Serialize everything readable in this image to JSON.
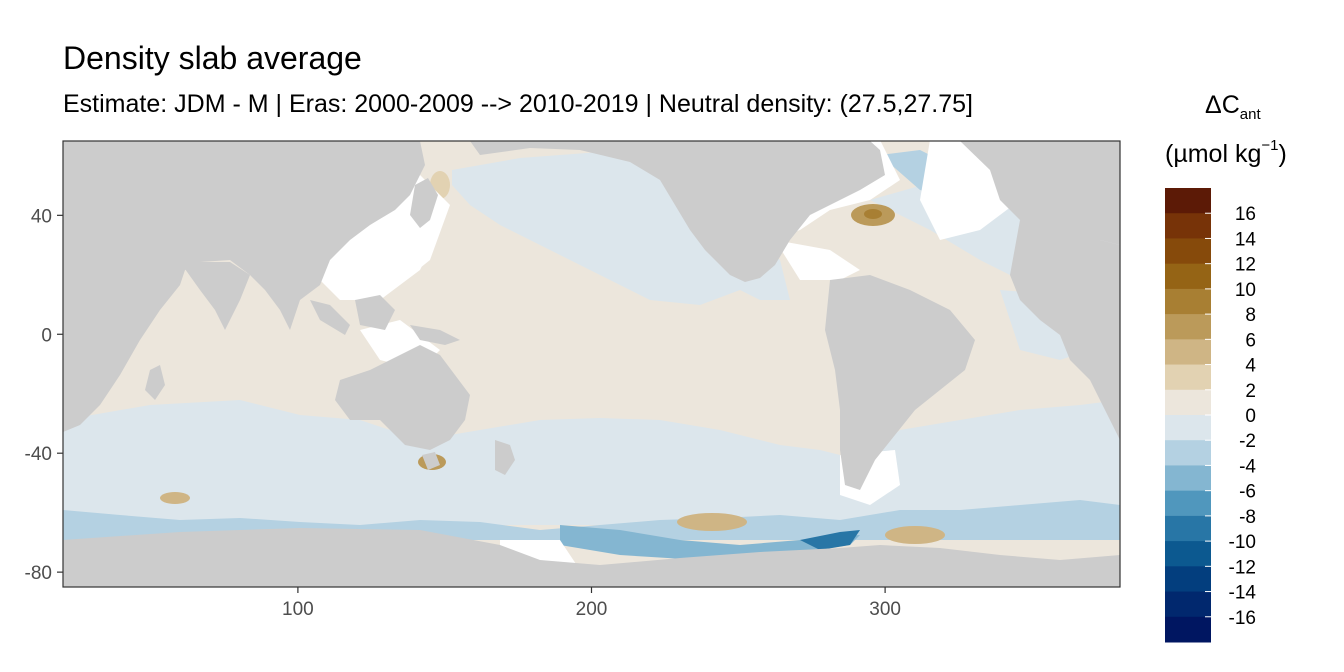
{
  "title": "Density slab average",
  "subtitle": "Estimate: JDM - M | Eras: 2000-2009 --> 2010-2019 | Neutral density: (27.5,27.75]",
  "chart_data": {
    "type": "heatmap",
    "x_ticks": [
      100,
      200,
      300
    ],
    "y_ticks": [
      40,
      0,
      -40,
      -80
    ],
    "xlim": [
      20,
      380
    ],
    "ylim": [
      -85,
      65
    ],
    "land_color": "#cccccc",
    "legend": {
      "title_main": "ΔC",
      "title_sub": "ant",
      "units_prefix": "(µmol kg",
      "units_sup": "−1",
      "units_suffix": ")",
      "labels": [
        "16",
        "14",
        "12",
        "10",
        "8",
        "6",
        "4",
        "2",
        "0",
        "-2",
        "-4",
        "-6",
        "-8",
        "-10",
        "-12",
        "-14",
        "-16"
      ],
      "colors": [
        "#5c1a06",
        "#773308",
        "#864a0b",
        "#956415",
        "#a87f33",
        "#bb9a5a",
        "#cfb585",
        "#e2d2b2",
        "#ece6dc",
        "#dce6ec",
        "#b4d1e2",
        "#84b6d1",
        "#5097bd",
        "#2876a6",
        "#0c5990",
        "#033e7e",
        "#01286e",
        "#001661"
      ]
    }
  }
}
